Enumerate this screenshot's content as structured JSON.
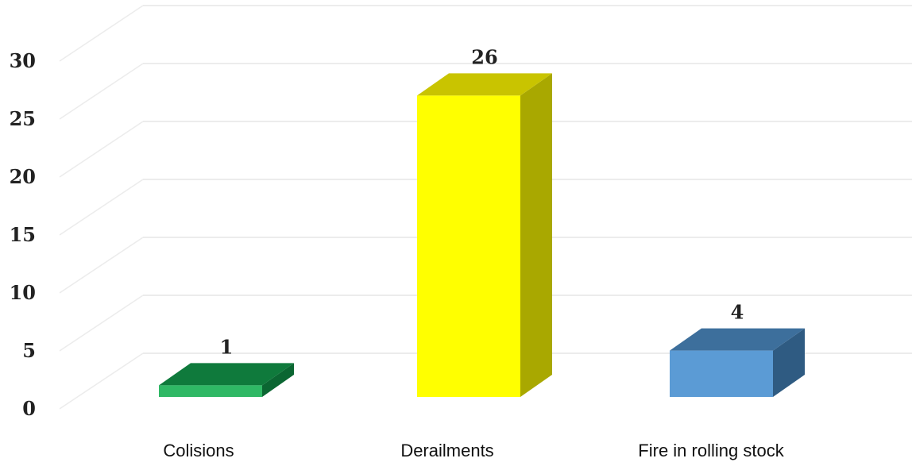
{
  "chart_data": {
    "type": "bar",
    "style": "3d",
    "categories": [
      "Colisions",
      "Derailments",
      "Fire in rolling stock"
    ],
    "values": [
      1,
      26,
      4
    ],
    "data_labels": [
      "1",
      "26",
      "4"
    ],
    "title": "",
    "xlabel": "",
    "ylabel": "",
    "ylim": [
      0,
      30
    ],
    "yticks": [
      "0",
      "5",
      "10",
      "15",
      "20",
      "25",
      "30"
    ],
    "grid": true,
    "legend": "none",
    "colors": {
      "Colisions": {
        "front": "#2fb865",
        "top": "#0f7a3c",
        "side": "#0b6632"
      },
      "Derailments": {
        "front": "#ffff00",
        "top": "#c9c400",
        "side": "#a9a800"
      },
      "Fire in rolling stock": {
        "front": "#5b9bd5",
        "top": "#3d6f9c",
        "side": "#2f5b82"
      }
    }
  }
}
